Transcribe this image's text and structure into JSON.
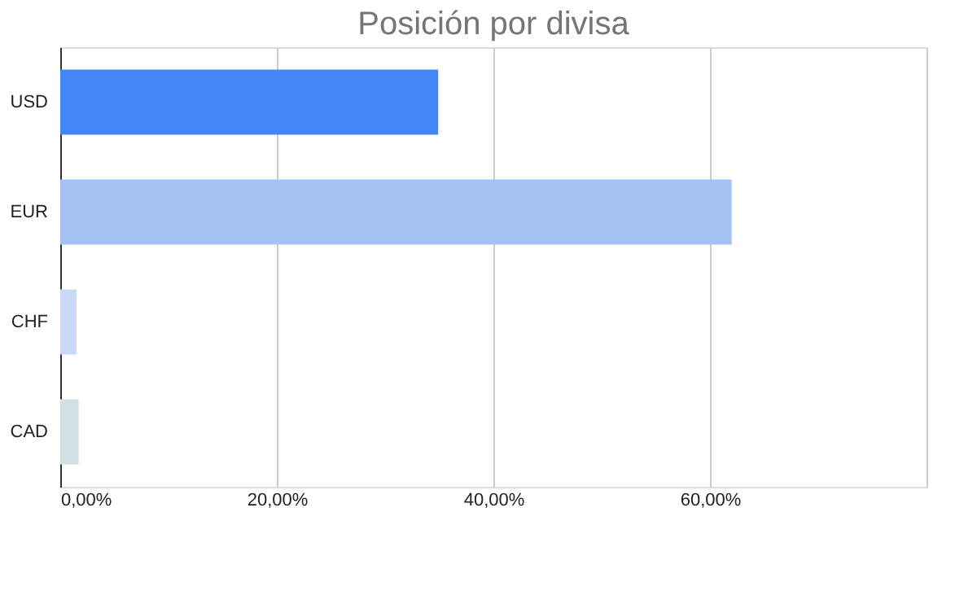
{
  "chart_data": {
    "type": "bar",
    "orientation": "horizontal",
    "title": "Posición por divisa",
    "categories": [
      "USD",
      "EUR",
      "CHF",
      "CAD"
    ],
    "values": [
      34.9,
      62.0,
      1.5,
      1.7
    ],
    "colors": [
      "#4285f4",
      "#a4c2f4",
      "#c9daf8",
      "#d0e0e3"
    ],
    "xlim": [
      0,
      80
    ],
    "xticks": [
      {
        "value": 0,
        "label": "0,00%"
      },
      {
        "value": 20,
        "label": "20,00%"
      },
      {
        "value": 40,
        "label": "40,00%"
      },
      {
        "value": 60,
        "label": "60,00%"
      },
      {
        "value": 80,
        "label": null
      }
    ],
    "grid": "x",
    "legend": false
  }
}
